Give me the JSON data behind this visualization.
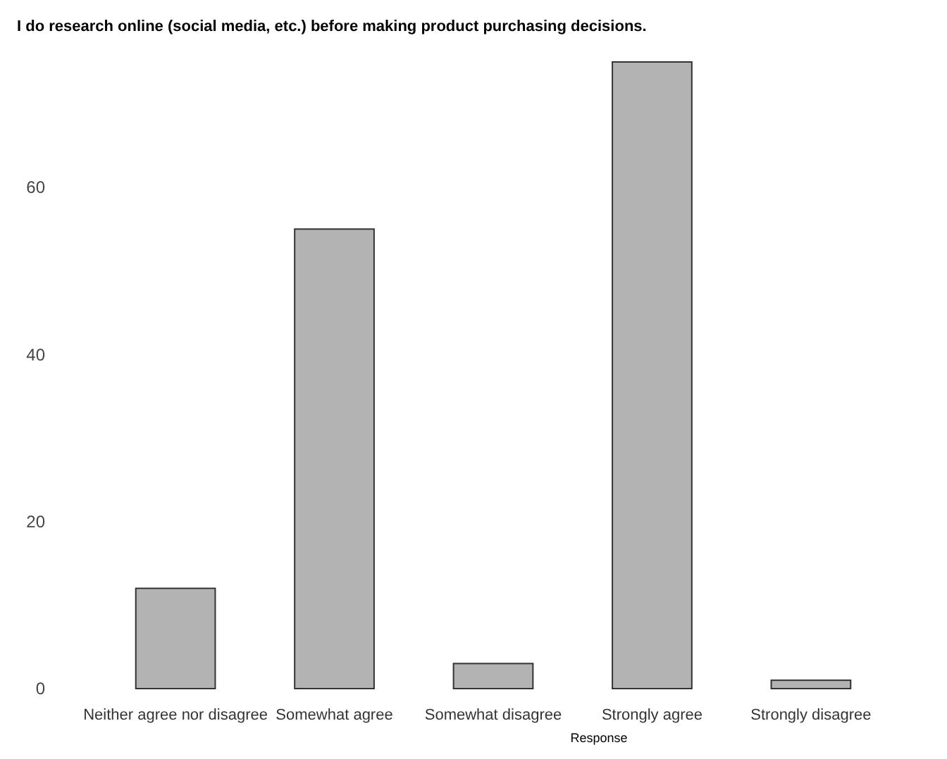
{
  "chart_data": {
    "type": "bar",
    "title": "I do research online (social media, etc.) before making product purchasing decisions.",
    "xlabel": "Response",
    "categories": [
      "Neither agree nor disagree",
      "Somewhat agree",
      "Somewhat disagree",
      "Strongly agree",
      "Strongly disagree"
    ],
    "values": [
      12,
      55,
      3,
      75,
      1
    ],
    "ylim": [
      0,
      75
    ],
    "color": "#b3b3b3",
    "yticks": [
      0,
      20,
      40,
      60
    ],
    "grid": false
  }
}
